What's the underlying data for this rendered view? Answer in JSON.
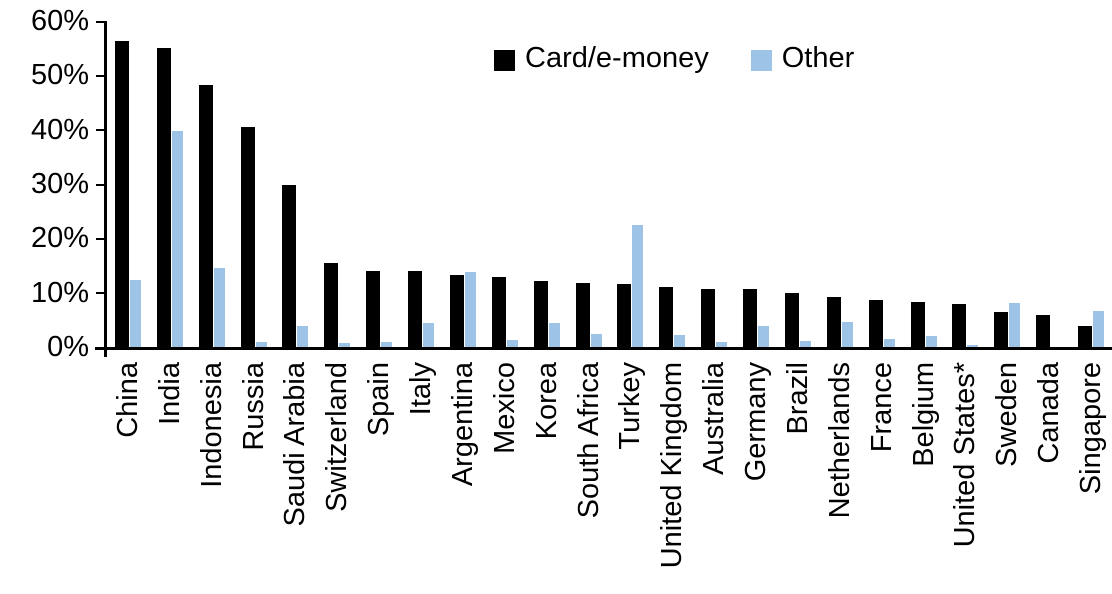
{
  "chart_data": {
    "type": "bar",
    "title": "",
    "xlabel": "",
    "ylabel": "",
    "ylim": [
      0,
      60
    ],
    "y_ticks": [
      "0%",
      "10%",
      "20%",
      "30%",
      "40%",
      "50%",
      "60%"
    ],
    "grid": false,
    "legend_position": "top-center",
    "categories": [
      "China",
      "India",
      "Indonesia",
      "Russia",
      "Saudi Arabia",
      "Switzerland",
      "Spain",
      "Italy",
      "Argentina",
      "Mexico",
      "Korea",
      "South Africa",
      "Turkey",
      "United Kingdom",
      "Australia",
      "Germany",
      "Brazil",
      "Netherlands",
      "France",
      "Belgium",
      "United States*",
      "Sweden",
      "Canada",
      "Singapore"
    ],
    "series": [
      {
        "name": "Card/e-money",
        "color": "#000000",
        "values": [
          56.3,
          55.0,
          48.2,
          40.5,
          29.8,
          15.5,
          14.0,
          14.0,
          13.3,
          12.9,
          12.2,
          11.7,
          11.6,
          11.0,
          10.7,
          10.6,
          10.0,
          9.2,
          8.6,
          8.2,
          7.9,
          6.5,
          5.9,
          3.9
        ]
      },
      {
        "name": "Other",
        "color": "#9DC3E6",
        "values": [
          12.3,
          39.8,
          14.5,
          1.0,
          3.8,
          0.7,
          1.0,
          4.5,
          13.8,
          1.3,
          4.5,
          2.4,
          22.5,
          2.3,
          0.9,
          3.9,
          1.1,
          4.7,
          1.5,
          2.0,
          0.3,
          8.1,
          0.0,
          6.7
        ]
      }
    ],
    "colors": {
      "axis": "#000000",
      "background": "#ffffff"
    }
  }
}
